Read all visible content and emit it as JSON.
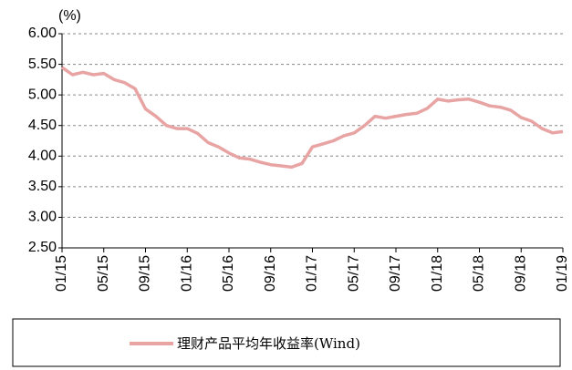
{
  "chart_data": {
    "type": "line",
    "y_unit_label": "(%)",
    "categories": [
      "01/15",
      null,
      null,
      null,
      "05/15",
      null,
      null,
      null,
      "09/15",
      null,
      null,
      null,
      "01/16",
      null,
      null,
      null,
      "05/16",
      null,
      null,
      null,
      "09/16",
      null,
      null,
      null,
      "01/17",
      null,
      null,
      null,
      "05/17",
      null,
      null,
      null,
      "09/17",
      null,
      null,
      null,
      "01/18",
      null,
      null,
      null,
      "05/18",
      null,
      null,
      null,
      "09/18",
      null,
      null,
      null,
      "01/19"
    ],
    "series": [
      {
        "name": "理财产品平均年收益率(Wind)",
        "color": "#e8a3a3",
        "values": [
          5.45,
          5.33,
          5.37,
          5.33,
          5.35,
          5.25,
          5.2,
          5.1,
          4.77,
          4.65,
          4.5,
          4.45,
          4.45,
          4.37,
          4.22,
          4.15,
          4.05,
          3.97,
          3.95,
          3.9,
          3.86,
          3.84,
          3.82,
          3.88,
          4.15,
          4.2,
          4.25,
          4.33,
          4.38,
          4.5,
          4.65,
          4.62,
          4.65,
          4.68,
          4.7,
          4.78,
          4.93,
          4.9,
          4.92,
          4.93,
          4.88,
          4.82,
          4.8,
          4.75,
          4.63,
          4.57,
          4.45,
          4.38,
          4.4
        ]
      }
    ],
    "ylim": [
      2.5,
      6.0
    ],
    "yticks": [
      {
        "value": 2.5,
        "label": "2.50"
      },
      {
        "value": 3.0,
        "label": "3.00"
      },
      {
        "value": 3.5,
        "label": "3.50"
      },
      {
        "value": 4.0,
        "label": "4.00"
      },
      {
        "value": 4.5,
        "label": "4.50"
      },
      {
        "value": 5.0,
        "label": "5.00"
      },
      {
        "value": 5.5,
        "label": "5.50"
      },
      {
        "value": 6.0,
        "label": "6.00"
      }
    ],
    "grid": true
  }
}
